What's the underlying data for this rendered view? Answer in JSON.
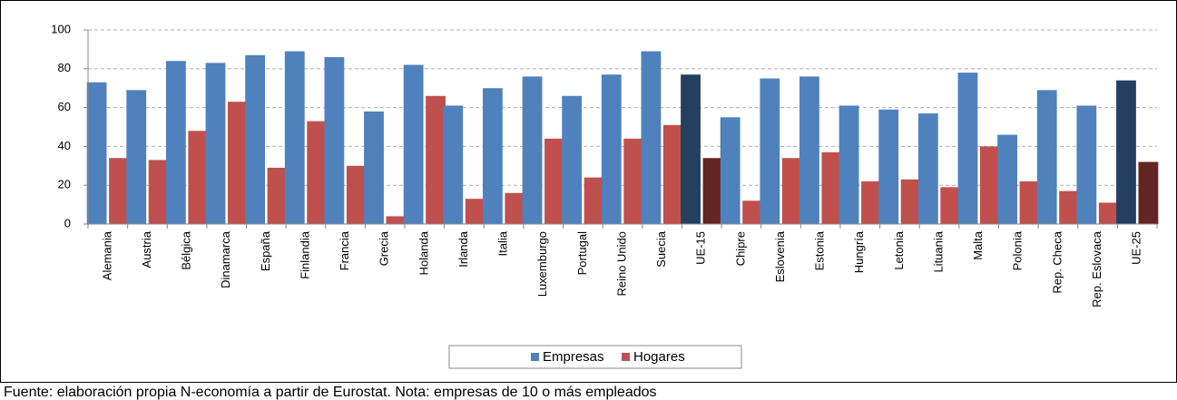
{
  "chart_data": {
    "type": "bar",
    "note": "Fuente: elaboración propia N-economía a partir de Eurostat. Nota: empresas de 10 o más empleados",
    "categories": [
      "Alemania",
      "Austria",
      "Bélgica",
      "Dinamarca",
      "España",
      "Finlandia",
      "Francia",
      "Grecia",
      "Holanda",
      "Irlanda",
      "Italia",
      "Luxemburgo",
      "Portugal",
      "Reino Unido",
      "Suecia",
      "UE-15",
      "Chipre",
      "Eslovenia",
      "Estonia",
      "Hungría",
      "Letonia",
      "Lituania",
      "Malta",
      "Polonia",
      "Rep. Checa",
      "Rep. Eslovaca",
      "UE-25"
    ],
    "series": [
      {
        "name": "Empresas",
        "color": "#4f81bd",
        "highlight_color": "#243f60",
        "values": [
          73,
          69,
          84,
          83,
          87,
          89,
          86,
          58,
          82,
          61,
          70,
          76,
          66,
          77,
          89,
          77,
          55,
          75,
          76,
          61,
          59,
          57,
          78,
          46,
          69,
          61,
          74
        ]
      },
      {
        "name": "Hogares",
        "color": "#c0504d",
        "highlight_color": "#632523",
        "values": [
          34,
          33,
          48,
          63,
          29,
          53,
          30,
          4,
          66,
          13,
          16,
          44,
          24,
          44,
          51,
          34,
          12,
          34,
          37,
          22,
          23,
          19,
          40,
          22,
          17,
          11,
          32
        ]
      }
    ],
    "highlight": [
      15,
      26
    ],
    "ylim": [
      0,
      100
    ],
    "yticks": [
      0,
      20,
      40,
      60,
      80,
      100
    ],
    "grid": true,
    "legend": "bottom"
  }
}
